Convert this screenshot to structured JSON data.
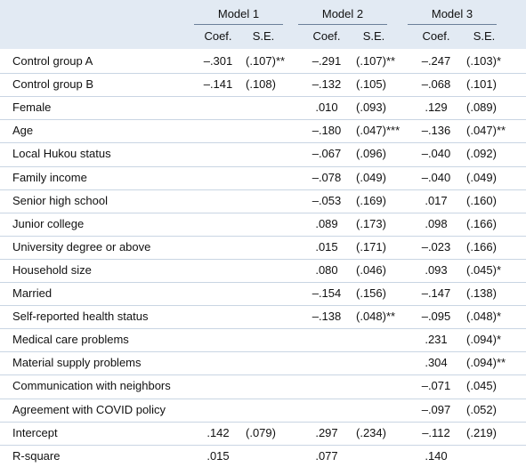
{
  "table": {
    "models": [
      "Model 1",
      "Model 2",
      "Model 3"
    ],
    "subheaders": [
      "Coef.",
      "S.E.",
      "Coef.",
      "S.E.",
      "Coef.",
      "S.E."
    ],
    "rows": [
      {
        "label": "Control group A",
        "values": [
          "–.301",
          "(.107)**",
          "–.291",
          "(.107)**",
          "–.247",
          "(.103)*"
        ]
      },
      {
        "label": "Control group B",
        "values": [
          "–.141",
          "(.108)",
          "–.132",
          "(.105)",
          "–.068",
          "(.101)"
        ]
      },
      {
        "label": "Female",
        "values": [
          null,
          null,
          ".010",
          "(.093)",
          ".129",
          "(.089)"
        ]
      },
      {
        "label": "Age",
        "values": [
          null,
          null,
          "–.180",
          "(.047)***",
          "–.136",
          "(.047)**"
        ]
      },
      {
        "label": "Local Hukou status",
        "values": [
          null,
          null,
          "–.067",
          "(.096)",
          "–.040",
          "(.092)"
        ]
      },
      {
        "label": "Family income",
        "values": [
          null,
          null,
          "–.078",
          "(.049)",
          "–.040",
          "(.049)"
        ]
      },
      {
        "label": "Senior high school",
        "values": [
          null,
          null,
          "–.053",
          "(.169)",
          ".017",
          "(.160)"
        ]
      },
      {
        "label": "Junior college",
        "values": [
          null,
          null,
          ".089",
          "(.173)",
          ".098",
          "(.166)"
        ]
      },
      {
        "label": "University degree or above",
        "values": [
          null,
          null,
          ".015",
          "(.171)",
          "–.023",
          "(.166)"
        ]
      },
      {
        "label": "Household size",
        "values": [
          null,
          null,
          ".080",
          "(.046)",
          ".093",
          "(.045)*"
        ]
      },
      {
        "label": "Married",
        "values": [
          null,
          null,
          "–.154",
          "(.156)",
          "–.147",
          "(.138)"
        ]
      },
      {
        "label": "Self-reported health status",
        "values": [
          null,
          null,
          "–.138",
          "(.048)**",
          "–.095",
          "(.048)*"
        ]
      },
      {
        "label": "Medical care problems",
        "values": [
          null,
          null,
          null,
          null,
          ".231",
          "(.094)*"
        ]
      },
      {
        "label": "Material supply problems",
        "values": [
          null,
          null,
          null,
          null,
          ".304",
          "(.094)**"
        ]
      },
      {
        "label": "Communication with neighbors",
        "values": [
          null,
          null,
          null,
          null,
          "–.071",
          "(.045)"
        ]
      },
      {
        "label": "Agreement with COVID policy",
        "values": [
          null,
          null,
          null,
          null,
          "–.097",
          "(.052)"
        ]
      },
      {
        "label": "Intercept",
        "values": [
          ".142",
          "(.079)",
          ".297",
          "(.234)",
          "–.112",
          "(.219)"
        ]
      },
      {
        "label": "R-square",
        "values": [
          ".015",
          null,
          ".077",
          null,
          ".140",
          null
        ]
      }
    ]
  }
}
